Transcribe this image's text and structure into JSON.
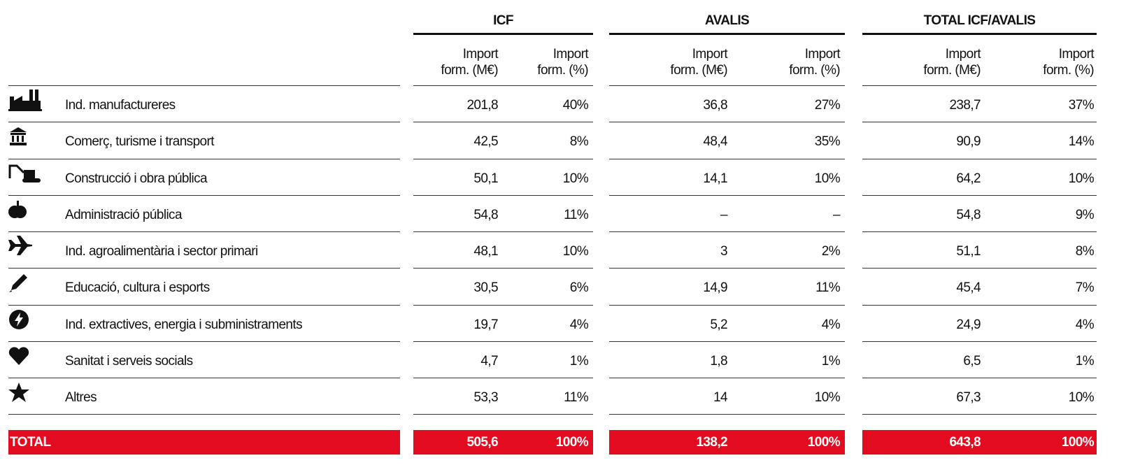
{
  "table": {
    "groups": [
      {
        "title": "ICF",
        "subheaders": [
          [
            "Import",
            "form. (M€)"
          ],
          [
            "Import",
            "form. (%)"
          ]
        ]
      },
      {
        "title": "AVALIS",
        "subheaders": [
          [
            "Import",
            "form. (M€)"
          ],
          [
            "Import",
            "form. (%)"
          ]
        ]
      },
      {
        "title": "TOTAL ICF/AVALIS",
        "subheaders": [
          [
            "Import",
            "form. (M€)"
          ],
          [
            "Import",
            "form. (%)"
          ]
        ]
      }
    ],
    "rows": [
      {
        "label": "Ind. manufactureres",
        "cells": [
          "201,8",
          "40%",
          "36,8",
          "27%",
          "238,7",
          "37%"
        ]
      },
      {
        "label": "Comerç, turisme i transport",
        "cells": [
          "42,5",
          "8%",
          "48,4",
          "35%",
          "90,9",
          "14%"
        ]
      },
      {
        "label": "Construcció i obra pública",
        "cells": [
          "50,1",
          "10%",
          "14,1",
          "10%",
          "64,2",
          "10%"
        ]
      },
      {
        "label": "Administració pública",
        "cells": [
          "54,8",
          "11%",
          "–",
          "–",
          "54,8",
          "9%"
        ]
      },
      {
        "label": "Ind. agroalimentària i sector primari",
        "cells": [
          "48,1",
          "10%",
          "3",
          "2%",
          "51,1",
          "8%"
        ]
      },
      {
        "label": "Educació, cultura i esports",
        "cells": [
          "30,5",
          "6%",
          "14,9",
          "11%",
          "45,4",
          "7%"
        ]
      },
      {
        "label": "Ind. extractives, energia i subministraments",
        "cells": [
          "19,7",
          "4%",
          "5,2",
          "4%",
          "24,9",
          "4%"
        ]
      },
      {
        "label": "Sanitat i serveis socials",
        "cells": [
          "4,7",
          "1%",
          "1,8",
          "1%",
          "6,5",
          "1%"
        ]
      },
      {
        "label": "Altres",
        "cells": [
          "53,3",
          "11%",
          "14",
          "10%",
          "67,3",
          "10%"
        ]
      }
    ],
    "total": {
      "label": "TOTAL",
      "cells": [
        "505,6",
        "100%",
        "138,2",
        "100%",
        "643,8",
        "100%"
      ]
    }
  }
}
